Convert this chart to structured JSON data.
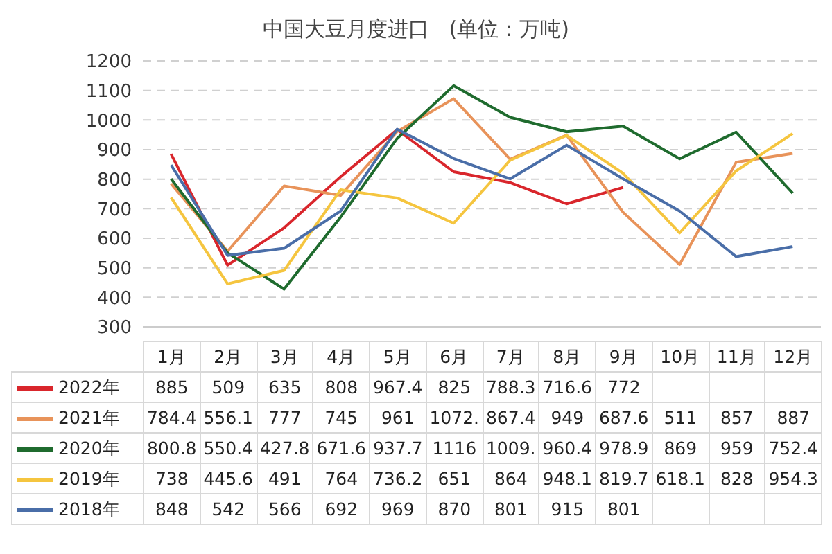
{
  "chart_data": {
    "type": "line",
    "title": "中国大豆月度进口   (单位：万吨)",
    "categories": [
      "1月",
      "2月",
      "3月",
      "4月",
      "5月",
      "6月",
      "7月",
      "8月",
      "9月",
      "10月",
      "11月",
      "12月"
    ],
    "series": [
      {
        "name": "2022年",
        "color": "#d9262c",
        "values": [
          885,
          509,
          635,
          808,
          967.4,
          825,
          788.3,
          716.6,
          772,
          null,
          null,
          null
        ],
        "value_labels": [
          "885",
          "509",
          "635",
          "808",
          "967.4",
          "825",
          "788.3",
          "716.6",
          "772",
          null,
          null,
          null
        ]
      },
      {
        "name": "2021年",
        "color": "#e8935a",
        "values": [
          784.4,
          556.1,
          777,
          745,
          961,
          1072,
          867.4,
          949,
          687.6,
          511,
          857,
          887
        ],
        "value_labels": [
          "784.4",
          "556.1",
          "777",
          "745",
          "961",
          "1072.",
          "867.4",
          "949",
          "687.6",
          "511",
          "857",
          "887"
        ]
      },
      {
        "name": "2020年",
        "color": "#1f6b2e",
        "values": [
          800.8,
          550.4,
          427.8,
          671.6,
          937.7,
          1116,
          1009,
          960.4,
          978.9,
          869,
          959,
          752.4
        ],
        "value_labels": [
          "800.8",
          "550.4",
          "427.8",
          "671.6",
          "937.7",
          "1116",
          "1009.",
          "960.4",
          "978.9",
          "869",
          "959",
          "752.4"
        ]
      },
      {
        "name": "2019年",
        "color": "#f5c53f",
        "values": [
          738,
          445.6,
          491,
          764,
          736.2,
          651,
          864,
          948.1,
          819.7,
          618.1,
          828,
          954.3
        ],
        "value_labels": [
          "738",
          "445.6",
          "491",
          "764",
          "736.2",
          "651",
          "864",
          "948.1",
          "819.7",
          "618.1",
          "828",
          "954.3"
        ]
      },
      {
        "name": "2018年",
        "color": "#4a6ea8",
        "values": [
          848,
          542,
          566,
          692,
          969,
          870,
          801,
          915,
          801,
          692,
          538,
          572
        ],
        "value_labels": [
          "848",
          "542",
          "566",
          "692",
          "969",
          "870",
          "801",
          "915",
          "801",
          null,
          null,
          null
        ]
      }
    ],
    "ylim": [
      300,
      1200
    ],
    "yticks": [
      300,
      400,
      500,
      600,
      700,
      800,
      900,
      1000,
      1100,
      1200
    ],
    "grid": "y",
    "legend": "bottom"
  }
}
